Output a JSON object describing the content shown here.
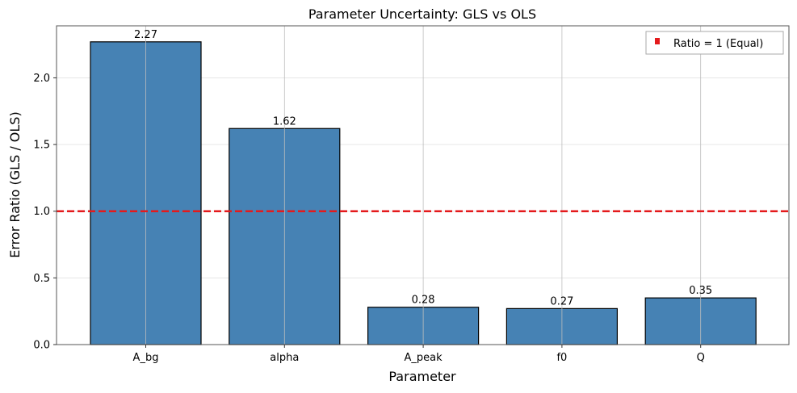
{
  "chart_data": {
    "type": "bar",
    "title": "Parameter Uncertainty: GLS vs OLS",
    "xlabel": "Parameter",
    "ylabel": "Error Ratio (GLS / OLS)",
    "categories": [
      "A_bg",
      "alpha",
      "A_peak",
      "f0",
      "Q"
    ],
    "values": [
      2.27,
      1.62,
      0.28,
      0.27,
      0.35
    ],
    "value_labels": [
      "2.27",
      "1.62",
      "0.28",
      "0.27",
      "0.35"
    ],
    "ylim": [
      0,
      2.39
    ],
    "yticks": [
      0.0,
      0.5,
      1.0,
      1.5,
      2.0
    ],
    "ytick_labels": [
      "0.0",
      "0.5",
      "1.0",
      "1.5",
      "2.0"
    ],
    "grid": true,
    "bar_color": "#4682b4",
    "reference_line": {
      "value": 1.0,
      "label": "Ratio = 1 (Equal)",
      "color": "#e41a1c",
      "style": "dashed"
    },
    "legend_position": "top-right"
  }
}
